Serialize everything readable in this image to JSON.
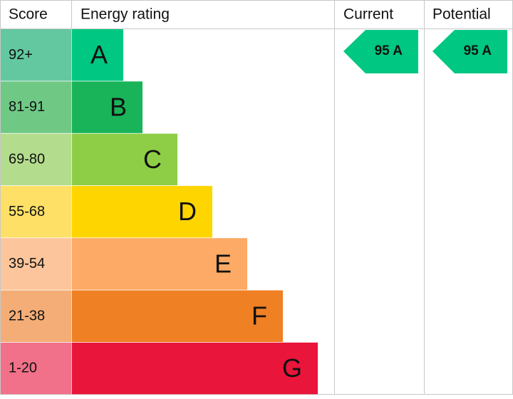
{
  "header": {
    "score": "Score",
    "rating": "Energy rating",
    "current": "Current",
    "potential": "Potential"
  },
  "rows": [
    {
      "score": "92+",
      "letter": "A"
    },
    {
      "score": "81-91",
      "letter": "B"
    },
    {
      "score": "69-80",
      "letter": "C"
    },
    {
      "score": "55-68",
      "letter": "D"
    },
    {
      "score": "39-54",
      "letter": "E"
    },
    {
      "score": "21-38",
      "letter": "F"
    },
    {
      "score": "1-20",
      "letter": "G"
    }
  ],
  "current": {
    "label": "95 A"
  },
  "potential": {
    "label": "95 A"
  }
}
